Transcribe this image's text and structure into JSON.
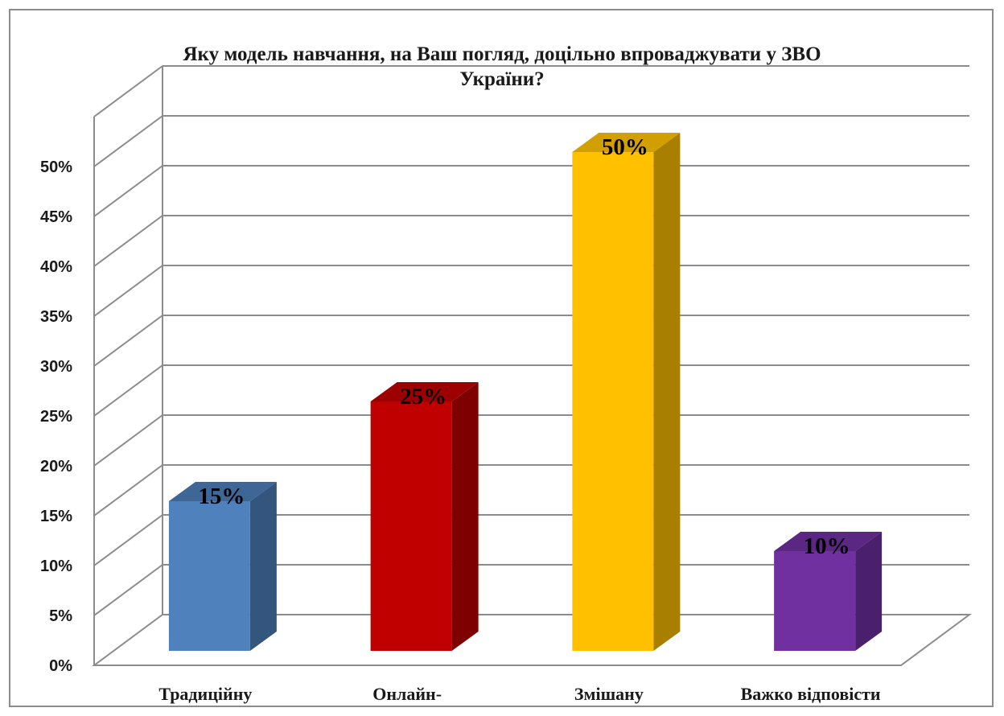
{
  "chart_data": {
    "type": "bar",
    "title_lines": [
      "Яку модель навчання, на Ваш погляд, доцільно впроваджувати у ЗВО",
      "України?"
    ],
    "categories": [
      "Традиційну",
      "Онлайн-",
      "Змішану",
      "Важко відповісти"
    ],
    "values": [
      15,
      25,
      50,
      10
    ],
    "value_labels": [
      "15%",
      "25%",
      "50%",
      "10%"
    ],
    "yticks": [
      "0%",
      "5%",
      "10%",
      "15%",
      "20%",
      "25%",
      "30%",
      "35%",
      "40%",
      "45%",
      "50%"
    ],
    "ylim": [
      0,
      50
    ],
    "grid": true,
    "legend": "none",
    "style": "3d-column",
    "colors": {
      "front": [
        "#4f81bd",
        "#c00000",
        "#ffc000",
        "#7030a0"
      ],
      "side": [
        "#34557c",
        "#7f0000",
        "#a97f00",
        "#4a1f6b"
      ],
      "top": [
        "#3e6797",
        "#9d0000",
        "#d29f00",
        "#5a2783"
      ]
    }
  }
}
